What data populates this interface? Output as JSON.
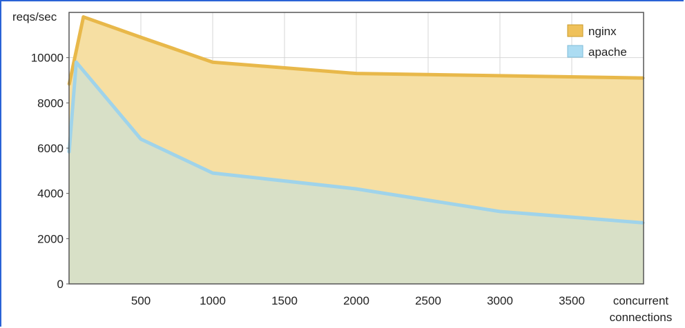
{
  "chart_data": {
    "type": "area",
    "ylabel": "reqs/sec",
    "xlabel_line1": "concurrent",
    "xlabel_line2": "connections",
    "xlim": [
      0,
      4000
    ],
    "ylim": [
      0,
      12000
    ],
    "x_ticks": [
      500,
      1000,
      1500,
      2000,
      2500,
      3000,
      3500
    ],
    "y_ticks": [
      0,
      2000,
      4000,
      6000,
      8000,
      10000
    ],
    "grid": true,
    "legend_position": "top-right",
    "series": [
      {
        "name": "nginx",
        "color": "#e8b84a",
        "fill": "#f6dfa3",
        "x": [
          0,
          100,
          500,
          1000,
          2000,
          3000,
          4000
        ],
        "values": [
          8800,
          11800,
          10900,
          9800,
          9300,
          9200,
          9100
        ]
      },
      {
        "name": "apache",
        "color": "#9fd3ea",
        "fill": "#d6dfc9",
        "x": [
          0,
          50,
          500,
          1000,
          2000,
          3000,
          4000
        ],
        "values": [
          5800,
          9800,
          6400,
          4900,
          4200,
          3200,
          2700
        ]
      }
    ]
  }
}
